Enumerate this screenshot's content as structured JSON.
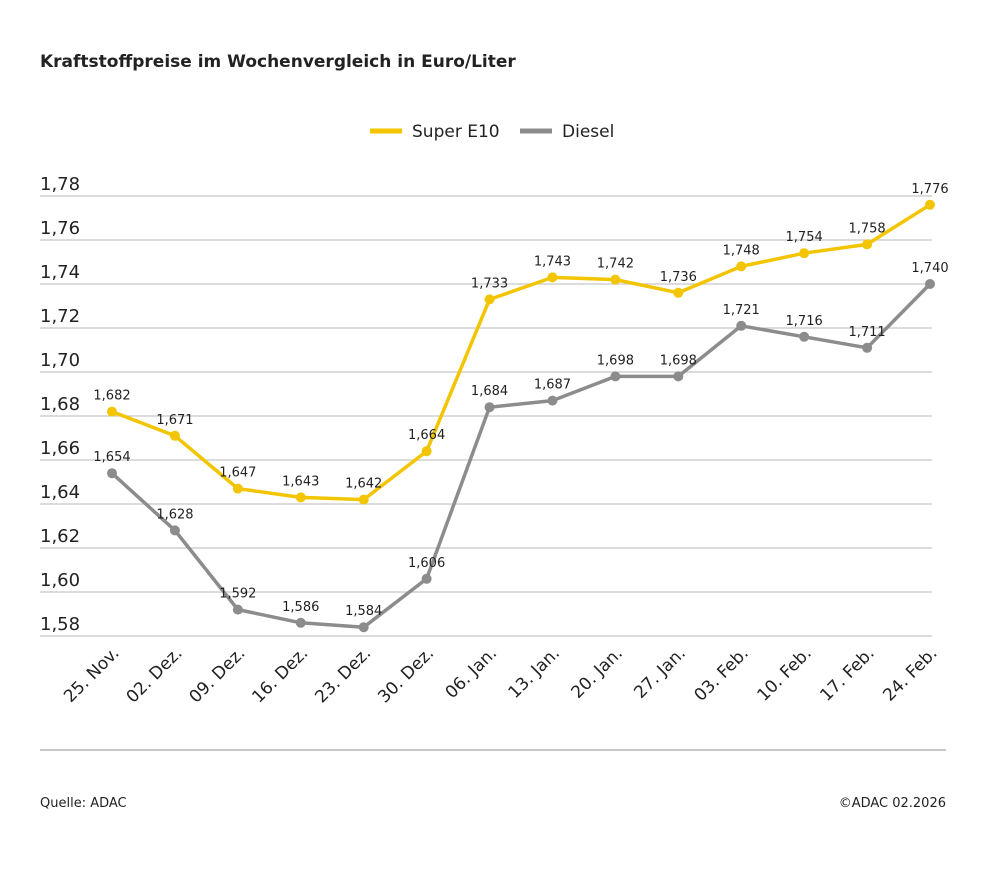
{
  "chart_data": {
    "type": "line",
    "title": "Kraftstoffpreise im Wochenvergleich in Euro/Liter",
    "categories": [
      "25. Nov.",
      "02. Dez.",
      "09. Dez.",
      "16. Dez.",
      "23. Dez.",
      "30. Dez.",
      "06. Jan.",
      "13. Jan.",
      "20. Jan.",
      "27. Jan.",
      "03. Feb.",
      "10. Feb.",
      "17. Feb.",
      "24. Feb."
    ],
    "series": [
      {
        "name": "Super E10",
        "color": "#f2c500",
        "values": [
          1.682,
          1.671,
          1.647,
          1.643,
          1.642,
          1.664,
          1.733,
          1.743,
          1.742,
          1.736,
          1.748,
          1.754,
          1.758,
          1.776
        ],
        "value_labels": [
          "1,682",
          "1,671",
          "1,647",
          "1,643",
          "1,642",
          "1,664",
          "1,733",
          "1,743",
          "1,742",
          "1,736",
          "1,748",
          "1,754",
          "1,758",
          "1,776"
        ]
      },
      {
        "name": "Diesel",
        "color": "#8c8c8c",
        "values": [
          1.654,
          1.628,
          1.592,
          1.586,
          1.584,
          1.606,
          1.684,
          1.687,
          1.698,
          1.698,
          1.721,
          1.716,
          1.711,
          1.74
        ],
        "value_labels": [
          "1,654",
          "1,628",
          "1,592",
          "1,586",
          "1,584",
          "1,606",
          "1,684",
          "1,687",
          "1,698",
          "1,698",
          "1,721",
          "1,716",
          "1,711",
          "1,740"
        ]
      }
    ],
    "ylim": [
      1.58,
      1.78
    ],
    "yticks": [
      {
        "value": 1.58,
        "label": "1,58"
      },
      {
        "value": 1.6,
        "label": "1,60"
      },
      {
        "value": 1.62,
        "label": "1,62"
      },
      {
        "value": 1.64,
        "label": "1,64"
      },
      {
        "value": 1.66,
        "label": "1,66"
      },
      {
        "value": 1.68,
        "label": "1,68"
      },
      {
        "value": 1.7,
        "label": "1,70"
      },
      {
        "value": 1.72,
        "label": "1,72"
      },
      {
        "value": 1.74,
        "label": "1,74"
      },
      {
        "value": 1.76,
        "label": "1,76"
      },
      {
        "value": 1.78,
        "label": "1,78"
      }
    ],
    "grid": true,
    "legend": "top",
    "source": "Quelle: ADAC",
    "copyright": "©ADAC 02.2026"
  }
}
